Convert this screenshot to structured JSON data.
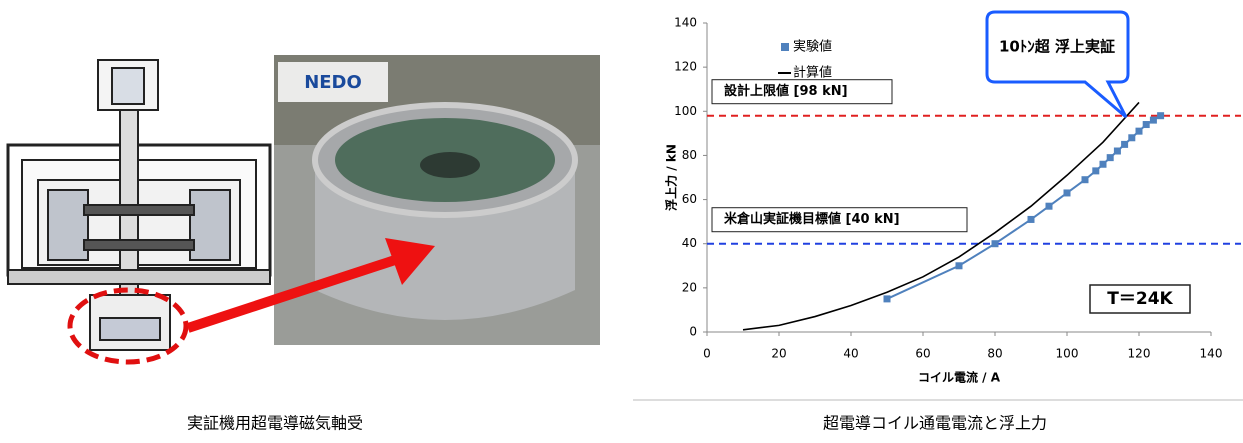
{
  "photo_label": "NEDO",
  "captions": [
    "実証機用超電導磁気軸受",
    "超電導コイル通電電流と浮上力"
  ],
  "chart_data": {
    "type": "line",
    "xlabel": "コイル電流 / A",
    "ylabel": "浮上力 / kN",
    "xlim": [
      0,
      140
    ],
    "xticks": [
      0,
      20,
      40,
      60,
      80,
      100,
      120,
      140
    ],
    "ylim": [
      0,
      140
    ],
    "yticks": [
      0,
      20,
      40,
      60,
      80,
      100,
      120,
      140
    ],
    "series": [
      {
        "name": "実験値",
        "color": "#4f81bd",
        "marker": "square",
        "x": [
          50,
          70,
          80,
          90,
          95,
          100,
          105,
          108,
          110,
          112,
          114,
          116,
          118,
          120,
          122,
          124,
          126
        ],
        "values": [
          15,
          30,
          40,
          51,
          57,
          63,
          69,
          73,
          76,
          79,
          82,
          85,
          88,
          91,
          94,
          96,
          98
        ]
      },
      {
        "name": "計算値",
        "color": "#000000",
        "marker": "none",
        "x": [
          10,
          20,
          30,
          40,
          50,
          60,
          70,
          80,
          90,
          100,
          110,
          120
        ],
        "values": [
          1,
          3,
          7,
          12,
          18,
          25,
          34,
          45,
          57,
          71,
          86,
          104
        ]
      }
    ],
    "reference_lines": [
      {
        "value": 98,
        "label": "設計上限値 [98 kN]",
        "color": "#e02020"
      },
      {
        "value": 40,
        "label": "米倉山実証機目標値 [40 kN]",
        "color": "#2040e0"
      }
    ],
    "annotations": [
      "10ﾄﾝ超 浮上実証",
      "T＝24K"
    ]
  }
}
